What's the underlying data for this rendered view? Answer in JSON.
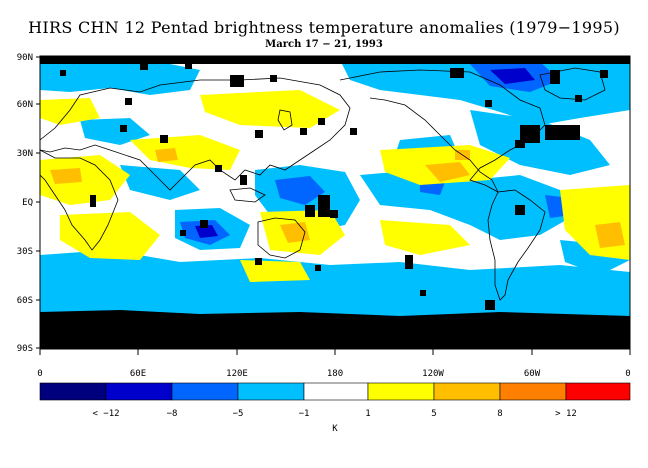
{
  "title": "HIRS CHN 12 Pentad brightness temperature anomalies (1979−1995)",
  "subtitle": "March 17 − 21, 1993",
  "y_ticks": [
    "90N",
    "60N",
    "30N",
    "EQ",
    "30S",
    "60S",
    "90S"
  ],
  "x_ticks": [
    "0",
    "60E",
    "120E",
    "180",
    "120W",
    "60W",
    "0"
  ],
  "colorbar": {
    "colors": [
      "#00007f",
      "#0000cc",
      "#0066ff",
      "#00bfff",
      "#ffffff",
      "#ffff00",
      "#ffbf00",
      "#ff8000",
      "#ff0000"
    ],
    "labels": [
      "< −12",
      "−8",
      "−5",
      "−1",
      "1",
      "5",
      "8",
      "> 12"
    ],
    "unit": "K"
  },
  "map_colors": {
    "missing": "#000000",
    "land_outline": "#000000"
  }
}
